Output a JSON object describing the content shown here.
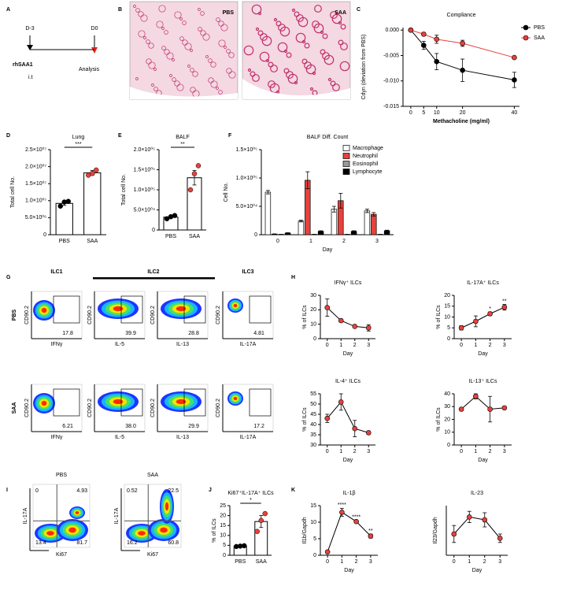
{
  "panel_labels": [
    "A",
    "B",
    "C",
    "D",
    "E",
    "F",
    "G",
    "H",
    "I",
    "J",
    "K"
  ],
  "schematic": {
    "start": "D-3",
    "end": "D0",
    "treatment": "rhSAA1",
    "route": "i.t",
    "readout": "Analysis"
  },
  "histology": {
    "labels": [
      "PBS",
      "SAA"
    ]
  },
  "flow_g": {
    "groups": [
      "ILC1",
      "ILC2",
      "ILC3"
    ],
    "y_axis": "CD90.2",
    "x_axes": [
      "IFNγ",
      "IL-5",
      "IL-13",
      "IL-17A"
    ],
    "rows": [
      {
        "label": "PBS",
        "gates": [
          "17.8",
          "39.9",
          "28.8",
          "4.81"
        ]
      },
      {
        "label": "SAA",
        "gates": [
          "6.21",
          "38.0",
          "29.9",
          "17.2"
        ]
      }
    ]
  },
  "flow_i": {
    "x_axis": "Ki67",
    "y_axis": "IL-17A",
    "plots": [
      {
        "label": "PBS",
        "quadrants": [
          "0",
          "4.93",
          "13.4",
          "81.7"
        ]
      },
      {
        "label": "SAA",
        "quadrants": [
          "0.52",
          "22.5",
          "16.2",
          "60.8"
        ]
      }
    ]
  },
  "chart_data": [
    {
      "type": "line",
      "title": "Compliance",
      "x": [
        0,
        5,
        10,
        20,
        40
      ],
      "xlim": [
        -3,
        42
      ],
      "xticks": [
        0,
        5,
        10,
        20,
        40
      ],
      "ylim": [
        -0.015,
        0.0005
      ],
      "yticks": [
        {
          "value": 0,
          "label": "0.000"
        },
        -0.005,
        {
          "value": -0.01,
          "label": "-0.010"
        },
        -0.015
      ],
      "x_label": "Methacholine (mg/ml)",
      "y_label": "Cdyn (deviation from PBS)",
      "legend": "top-right",
      "series": [
        {
          "name": "PBS",
          "color": "#000000",
          "values": [
            0,
            -0.003,
            -0.0062,
            -0.0079,
            -0.0098
          ],
          "errors": [
            0,
            0.0008,
            0.0016,
            0.0022,
            0.0015
          ]
        },
        {
          "name": "SAA",
          "color": "#e8413c",
          "values": [
            0,
            -0.0008,
            -0.0018,
            -0.0026,
            -0.0054
          ],
          "errors": [
            0,
            0.0003,
            0.0008,
            0.0006,
            0.0002
          ]
        }
      ]
    },
    {
      "type": "bar",
      "title": "Lung",
      "categories": [
        "PBS",
        "SAA"
      ],
      "values": [
        9200000,
        18200000
      ],
      "errors": [
        600000,
        700000
      ],
      "points": [
        [
          8400000,
          9600000,
          9800000
        ],
        [
          17500000,
          18000000,
          19000000
        ]
      ],
      "point_colors": [
        "#000000",
        "#e8413c"
      ],
      "color": "#ffffff",
      "ylim": [
        0,
        25000000
      ],
      "yticks": [
        0,
        {
          "value": 5000000,
          "label": "5.0×10⁰⁶"
        },
        {
          "value": 10000000,
          "label": "1.0×10⁰⁷"
        },
        {
          "value": 15000000,
          "label": "1.5×10⁰⁷"
        },
        {
          "value": 20000000,
          "label": "2.0×10⁰⁷"
        },
        {
          "value": 25000000,
          "label": "2.5×10⁰⁷"
        }
      ],
      "y_label": "Total cell No.",
      "significance": "***"
    },
    {
      "type": "bar",
      "title": "BALF",
      "categories": [
        "PBS",
        "SAA"
      ],
      "values": [
        32000,
        130000
      ],
      "errors": [
        3000,
        18000
      ],
      "points": [
        [
          28000,
          33000,
          36000
        ],
        [
          100000,
          140000,
          160000
        ]
      ],
      "point_colors": [
        "#000000",
        "#e8413c"
      ],
      "color": "#ffffff",
      "ylim": [
        0,
        200000
      ],
      "yticks": [
        0,
        {
          "value": 50000,
          "label": "5.0×10⁰⁴"
        },
        {
          "value": 100000,
          "label": "1.0×10⁰⁵"
        },
        {
          "value": 150000,
          "label": "1.5×10⁰⁵"
        },
        {
          "value": 200000,
          "label": "2.0×10⁰⁵"
        }
      ],
      "y_label": "Total cell No.",
      "significance": "**"
    },
    {
      "type": "bar",
      "title": "BALF Diff. Count",
      "categories": [
        "0",
        "1",
        "2",
        "3"
      ],
      "x_label": "Day",
      "y_label": "Cell No.",
      "legend": "top-right",
      "ylim": [
        0,
        150000
      ],
      "yticks": [
        0,
        {
          "value": 50000,
          "label": "5.0×10⁰⁴"
        },
        {
          "value": 100000,
          "label": "1.0×10⁰⁵"
        },
        {
          "value": 150000,
          "label": "1.5×10⁰⁵"
        }
      ],
      "series": [
        {
          "name": "Macrophage",
          "color": "#ffffff",
          "values": [
            75000,
            24000,
            45000,
            42000
          ],
          "errors": [
            3000,
            1500,
            5000,
            3000
          ]
        },
        {
          "name": "Neutrophil",
          "color": "#e8413c",
          "values": [
            1000,
            96000,
            60000,
            36000
          ],
          "errors": [
            500,
            15000,
            13000,
            3000
          ]
        },
        {
          "name": "Eosinophil",
          "color": "#999999",
          "values": [
            500,
            500,
            500,
            500
          ],
          "errors": [
            200,
            200,
            200,
            200
          ]
        },
        {
          "name": "Lymphocyte",
          "color": "#000000",
          "values": [
            3000,
            6000,
            6000,
            7000
          ],
          "errors": [
            500,
            1000,
            1000,
            1000
          ]
        }
      ]
    },
    {
      "type": "line",
      "title": "IFNγ⁺ ILCs",
      "x": [
        0,
        1,
        2,
        3
      ],
      "xlim": [
        -0.5,
        3.5
      ],
      "xticks": [
        0,
        1,
        2,
        3
      ],
      "values": [
        21.5,
        12.5,
        8.5,
        7.5
      ],
      "errors": [
        6,
        1,
        0.5,
        2.2
      ],
      "color": "#e8413c",
      "line_color": "#000000",
      "ylim": [
        0,
        30
      ],
      "yticks": [
        0,
        10,
        20,
        30
      ],
      "x_label": "Day",
      "y_label": "% of ILCs"
    },
    {
      "type": "line",
      "title": "IL-17A⁺ ILCs",
      "x": [
        0,
        1,
        2,
        3
      ],
      "xlim": [
        -0.5,
        3.5
      ],
      "xticks": [
        0,
        1,
        2,
        3
      ],
      "values": [
        5,
        8,
        11.5,
        14.5
      ],
      "errors": [
        1,
        2.5,
        0.8,
        1.3
      ],
      "significance": [
        null,
        null,
        "*",
        "**"
      ],
      "color": "#e8413c",
      "line_color": "#000000",
      "ylim": [
        0,
        20
      ],
      "yticks": [
        0,
        5,
        10,
        15,
        20
      ],
      "x_label": "Day",
      "y_label": "% of ILCs"
    },
    {
      "type": "line",
      "title": "IL-4⁺ ILCs",
      "x": [
        0,
        1,
        2,
        3
      ],
      "xlim": [
        -0.5,
        3.5
      ],
      "xticks": [
        0,
        1,
        2,
        3
      ],
      "values": [
        43,
        51,
        38,
        36
      ],
      "errors": [
        2,
        4,
        4,
        0.8
      ],
      "color": "#e8413c",
      "line_color": "#000000",
      "ylim": [
        30,
        55
      ],
      "yticks": [
        30,
        35,
        40,
        45,
        50,
        55
      ],
      "x_label": "Day",
      "y_label": "% of ILCs"
    },
    {
      "type": "line",
      "title": "IL-13⁺ ILCs",
      "x": [
        0,
        1,
        2,
        3
      ],
      "xlim": [
        -0.5,
        3.5
      ],
      "xticks": [
        0,
        1,
        2,
        3
      ],
      "values": [
        28,
        38,
        28,
        29
      ],
      "errors": [
        0.5,
        2,
        10,
        0.5
      ],
      "color": "#e8413c",
      "line_color": "#000000",
      "ylim": [
        0,
        40
      ],
      "yticks": [
        0,
        10,
        20,
        30,
        40
      ],
      "x_label": "Day",
      "y_label": "% of ILCs"
    },
    {
      "type": "bar",
      "title": "Ki67⁺IL-17A⁺ ILCs",
      "categories": [
        "PBS",
        "SAA"
      ],
      "values": [
        4.6,
        17
      ],
      "errors": [
        0.3,
        3
      ],
      "points": [
        [
          4.4,
          4.6,
          4.8
        ],
        [
          12,
          17.5,
          21
        ]
      ],
      "point_colors": [
        "#000000",
        "#e8413c"
      ],
      "color": "#ffffff",
      "ylim": [
        0,
        25
      ],
      "yticks": [
        0,
        5,
        10,
        15,
        20,
        25
      ],
      "y_label": "% of ILCs",
      "significance": "*"
    },
    {
      "type": "line",
      "title": "IL-1β",
      "x": [
        0,
        1,
        2,
        3
      ],
      "xlim": [
        -0.5,
        3.5
      ],
      "xticks": [
        0,
        1,
        2,
        3
      ],
      "values": [
        1,
        13,
        10.2,
        5.8
      ],
      "errors": [
        0.2,
        1.2,
        0.4,
        0.6
      ],
      "significance": [
        null,
        "****",
        "****",
        "**"
      ],
      "color": "#e8413c",
      "line_color": "#000000",
      "ylim": [
        0,
        15
      ],
      "yticks": [
        0,
        5,
        10,
        15
      ],
      "x_label": "Day",
      "y_label": "Il1b/Gapdh"
    },
    {
      "type": "line",
      "title": "IL-23",
      "x": [
        0,
        1,
        2,
        3
      ],
      "xlim": [
        -0.5,
        3.5
      ],
      "xticks": [
        0,
        1,
        2,
        3
      ],
      "values": [
        1.5,
        2.7,
        2.5,
        1.2
      ],
      "errors": [
        0.6,
        0.4,
        0.5,
        0.3
      ],
      "color": "#e8413c",
      "line_color": "#000000",
      "ylim": [
        0,
        3.5
      ],
      "x_label": "Day",
      "y_label": "Il23/Gapdh"
    }
  ]
}
